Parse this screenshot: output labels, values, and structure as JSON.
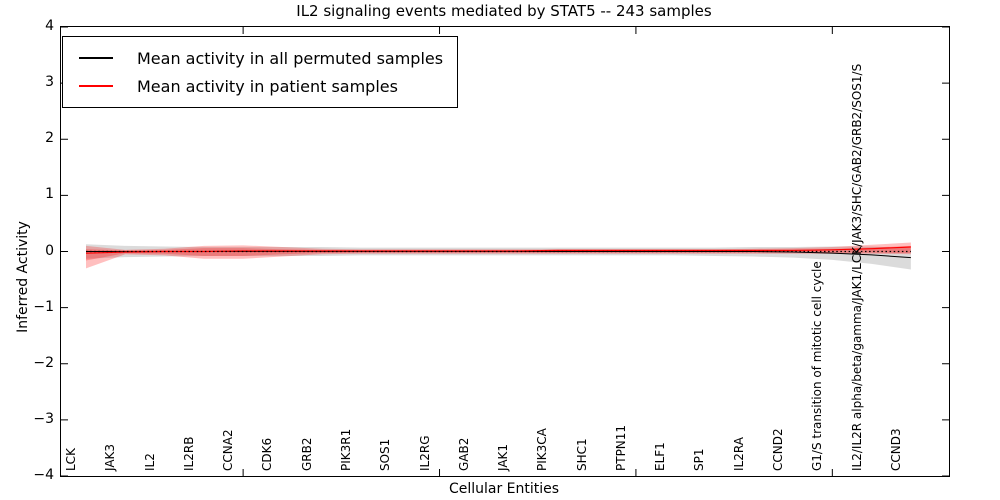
{
  "chart_data": {
    "type": "line",
    "title": "IL2 signaling events mediated by STAT5 -- 243 samples",
    "xlabel": "Cellular Entities",
    "ylabel": "Inferred Activity",
    "ylim": [
      -4,
      4
    ],
    "yticks": [
      4,
      3,
      2,
      1,
      0,
      -1,
      -2,
      -3,
      -4
    ],
    "grid": false,
    "legend_position": "upper-left",
    "zero_reference_line": true,
    "categories": [
      "LCK",
      "JAK3",
      "IL2",
      "IL2RB",
      "CCNA2",
      "CDK6",
      "GRB2",
      "PIK3R1",
      "SOS1",
      "IL2RG",
      "GAB2",
      "JAK1",
      "PIK3CA",
      "SHC1",
      "PTPN11",
      "ELF1",
      "SP1",
      "IL2RA",
      "CCND2",
      "G1/S transition of mitotic cell cycle",
      "IL2/IL2R alpha/beta/gamma/JAK1/LCK/JAK3/SHC/GAB2/GRB2/SOS1/S",
      "CCND3"
    ],
    "x_top_tick_indices": [
      4,
      9,
      14,
      19
    ],
    "series": [
      {
        "name": "Mean activity in all permuted samples",
        "color": "#000000",
        "band_color": "#000000",
        "band_opacity": 0.14,
        "values": [
          0,
          0,
          0,
          0,
          0,
          0,
          0,
          0,
          0,
          0,
          0,
          0,
          0,
          0,
          0,
          0,
          0,
          0,
          -0.01,
          -0.03,
          -0.06,
          -0.11
        ],
        "band_upper": [
          0.13,
          0.1,
          0.09,
          0.08,
          0.08,
          0.08,
          0.08,
          0.07,
          0.07,
          0.07,
          0.07,
          0.07,
          0.07,
          0.07,
          0.07,
          0.07,
          0.07,
          0.08,
          0.08,
          0.09,
          0.09,
          0.06
        ],
        "band_lower": [
          -0.13,
          -0.1,
          -0.09,
          -0.08,
          -0.08,
          -0.08,
          -0.08,
          -0.07,
          -0.07,
          -0.07,
          -0.07,
          -0.07,
          -0.07,
          -0.07,
          -0.07,
          -0.07,
          -0.08,
          -0.09,
          -0.11,
          -0.15,
          -0.22,
          -0.32
        ]
      },
      {
        "name": "Mean activity in patient samples",
        "color": "#ff0000",
        "band_color": "#ff0000",
        "band_opacity": 0.25,
        "values": [
          -0.03,
          -0.01,
          0,
          0,
          0.01,
          0.01,
          0.01,
          0.01,
          0.01,
          0.01,
          0.01,
          0.01,
          0.02,
          0.02,
          0.02,
          0.02,
          0.02,
          0.02,
          0.02,
          0.03,
          0.05,
          0.08
        ],
        "band_upper": [
          0.1,
          0.03,
          0.05,
          0.1,
          0.11,
          0.08,
          0.05,
          0.04,
          0.04,
          0.04,
          0.04,
          0.04,
          0.04,
          0.04,
          0.04,
          0.04,
          0.04,
          0.05,
          0.06,
          0.08,
          0.12,
          0.16
        ],
        "band_lower": [
          -0.3,
          -0.05,
          -0.07,
          -0.13,
          -0.13,
          -0.09,
          -0.05,
          -0.04,
          -0.04,
          -0.04,
          -0.04,
          -0.04,
          -0.04,
          -0.04,
          -0.04,
          -0.04,
          -0.04,
          -0.04,
          -0.04,
          -0.04,
          -0.04,
          -0.05
        ],
        "inner_band_upper": [
          0.04,
          0.02,
          0.03,
          0.06,
          0.06,
          0.04,
          0.03,
          0.02,
          0.02,
          0.02,
          0.02,
          0.02,
          0.02,
          0.02,
          0.02,
          0.02,
          0.02,
          0.03,
          0.03,
          0.04,
          0.07,
          0.1
        ],
        "inner_band_lower": [
          -0.16,
          -0.03,
          -0.04,
          -0.08,
          -0.08,
          -0.05,
          -0.03,
          -0.02,
          -0.02,
          -0.02,
          -0.02,
          -0.02,
          -0.02,
          -0.02,
          -0.02,
          -0.02,
          -0.02,
          -0.02,
          -0.02,
          -0.02,
          -0.02,
          -0.03
        ]
      }
    ]
  },
  "legend": {
    "items": [
      {
        "label": "Mean activity in all permuted samples",
        "color": "#000000"
      },
      {
        "label": "Mean activity in patient samples",
        "color": "#ff0000"
      }
    ]
  }
}
